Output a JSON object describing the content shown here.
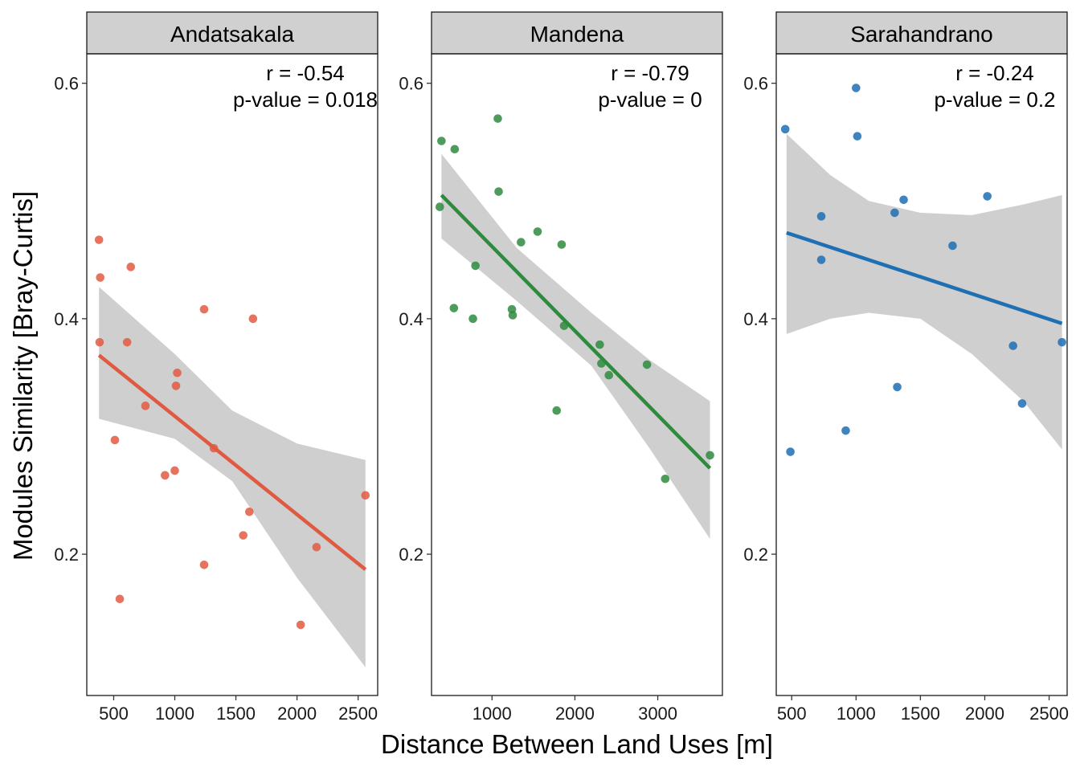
{
  "chart_data": {
    "type": "scatter",
    "xlabel": "Distance Between Land Uses [m]",
    "ylabel": "Modules Similarity [Bray-Curtis]",
    "ylim": [
      0.08,
      0.625
    ],
    "yticks": [
      0.2,
      0.4,
      0.6
    ],
    "grid": false,
    "panels": [
      {
        "name": "Andatsakala",
        "color": "#e05a42",
        "xlim": [
          280,
          2660
        ],
        "xticks": [
          500,
          1000,
          1500,
          2000,
          2500
        ],
        "stats": [
          "r = -0.54",
          "p-value = 0.018"
        ],
        "points": [
          [
            380,
            0.467
          ],
          [
            390,
            0.435
          ],
          [
            385,
            0.38
          ],
          [
            640,
            0.444
          ],
          [
            610,
            0.38
          ],
          [
            1240,
            0.408
          ],
          [
            1640,
            0.4
          ],
          [
            1020,
            0.354
          ],
          [
            1010,
            0.343
          ],
          [
            760,
            0.326
          ],
          [
            510,
            0.297
          ],
          [
            1320,
            0.29
          ],
          [
            920,
            0.267
          ],
          [
            1000,
            0.271
          ],
          [
            1610,
            0.236
          ],
          [
            1560,
            0.216
          ],
          [
            2160,
            0.206
          ],
          [
            2560,
            0.25
          ],
          [
            1240,
            0.191
          ],
          [
            550,
            0.162
          ],
          [
            2030,
            0.14
          ]
        ],
        "fit": [
          [
            380,
            0.369
          ],
          [
            2560,
            0.187
          ]
        ],
        "band_upper": [
          [
            380,
            0.427
          ],
          [
            1000,
            0.37
          ],
          [
            1470,
            0.322
          ],
          [
            2000,
            0.294
          ],
          [
            2560,
            0.28
          ]
        ],
        "band_lower": [
          [
            380,
            0.315
          ],
          [
            1000,
            0.298
          ],
          [
            1470,
            0.262
          ],
          [
            2000,
            0.18
          ],
          [
            2560,
            0.104
          ]
        ]
      },
      {
        "name": "Mandena",
        "color": "#2e8b3e",
        "xlim": [
          270,
          3780
        ],
        "xticks": [
          1000,
          2000,
          3000
        ],
        "stats": [
          "r = -0.79",
          "p-value = 0"
        ],
        "points": [
          [
            390,
            0.551
          ],
          [
            550,
            0.544
          ],
          [
            1070,
            0.57
          ],
          [
            1080,
            0.508
          ],
          [
            370,
            0.495
          ],
          [
            1550,
            0.474
          ],
          [
            1350,
            0.465
          ],
          [
            1840,
            0.463
          ],
          [
            800,
            0.445
          ],
          [
            540,
            0.409
          ],
          [
            770,
            0.4
          ],
          [
            1240,
            0.408
          ],
          [
            1250,
            0.403
          ],
          [
            1870,
            0.394
          ],
          [
            2300,
            0.378
          ],
          [
            2320,
            0.362
          ],
          [
            2410,
            0.352
          ],
          [
            2870,
            0.361
          ],
          [
            1780,
            0.322
          ],
          [
            3630,
            0.284
          ],
          [
            3090,
            0.264
          ]
        ],
        "fit": [
          [
            390,
            0.505
          ],
          [
            3630,
            0.273
          ]
        ],
        "band_upper": [
          [
            390,
            0.54
          ],
          [
            1300,
            0.46
          ],
          [
            2200,
            0.405
          ],
          [
            2900,
            0.365
          ],
          [
            3630,
            0.33
          ]
        ],
        "band_lower": [
          [
            390,
            0.468
          ],
          [
            1300,
            0.415
          ],
          [
            2200,
            0.36
          ],
          [
            2900,
            0.29
          ],
          [
            3630,
            0.213
          ]
        ]
      },
      {
        "name": "Sarahandrano",
        "color": "#1f6fb4",
        "xlim": [
          380,
          2640
        ],
        "xticks": [
          500,
          1000,
          1500,
          2000,
          2500
        ],
        "stats": [
          "r = -0.24",
          "p-value = 0.2"
        ],
        "points": [
          [
            1000,
            0.596
          ],
          [
            450,
            0.561
          ],
          [
            1010,
            0.555
          ],
          [
            2020,
            0.504
          ],
          [
            1370,
            0.501
          ],
          [
            1300,
            0.49
          ],
          [
            730,
            0.487
          ],
          [
            1750,
            0.462
          ],
          [
            730,
            0.45
          ],
          [
            2600,
            0.38
          ],
          [
            2220,
            0.377
          ],
          [
            1320,
            0.342
          ],
          [
            2290,
            0.328
          ],
          [
            920,
            0.305
          ],
          [
            490,
            0.287
          ]
        ],
        "fit": [
          [
            460,
            0.473
          ],
          [
            2600,
            0.396
          ]
        ],
        "band_upper": [
          [
            460,
            0.557
          ],
          [
            800,
            0.522
          ],
          [
            1100,
            0.5
          ],
          [
            1500,
            0.49
          ],
          [
            1900,
            0.488
          ],
          [
            2300,
            0.497
          ],
          [
            2600,
            0.505
          ]
        ],
        "band_lower": [
          [
            460,
            0.387
          ],
          [
            800,
            0.4
          ],
          [
            1100,
            0.405
          ],
          [
            1500,
            0.4
          ],
          [
            1900,
            0.37
          ],
          [
            2300,
            0.33
          ],
          [
            2600,
            0.289
          ]
        ]
      }
    ]
  }
}
